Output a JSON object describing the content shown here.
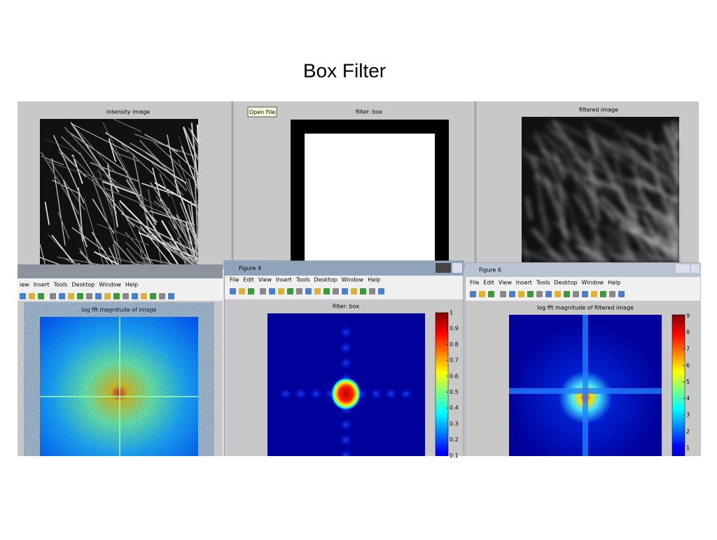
{
  "title": "Box Filter",
  "panels": [
    {
      "title": "intensity image"
    },
    {
      "title": "filter: box",
      "tooltip": "Open File"
    },
    {
      "title": "filtered image"
    }
  ],
  "windows": [
    {
      "menu": [
        "iew",
        "Insert",
        "Tools",
        "Desktop",
        "Window",
        "Help"
      ],
      "plot_title": "log fft magnitude of image"
    },
    {
      "title": "Figure 4",
      "menu": [
        "File",
        "Edit",
        "View",
        "Insert",
        "Tools",
        "Desktop",
        "Window",
        "Help"
      ],
      "plot_title": "filter: box",
      "colorbar_ticks": [
        1,
        0.9,
        0.8,
        0.7,
        0.6,
        0.5,
        0.4,
        0.3,
        0.2,
        0.1
      ]
    },
    {
      "title": "Figure 6",
      "menu": [
        "File",
        "Edit",
        "View",
        "Insert",
        "Tools",
        "Desktop",
        "Window",
        "Help"
      ],
      "plot_title": "log fft magnitude of filtered image",
      "colorbar_ticks": [
        9,
        8,
        7,
        6,
        5,
        4,
        3,
        2,
        1
      ]
    }
  ]
}
